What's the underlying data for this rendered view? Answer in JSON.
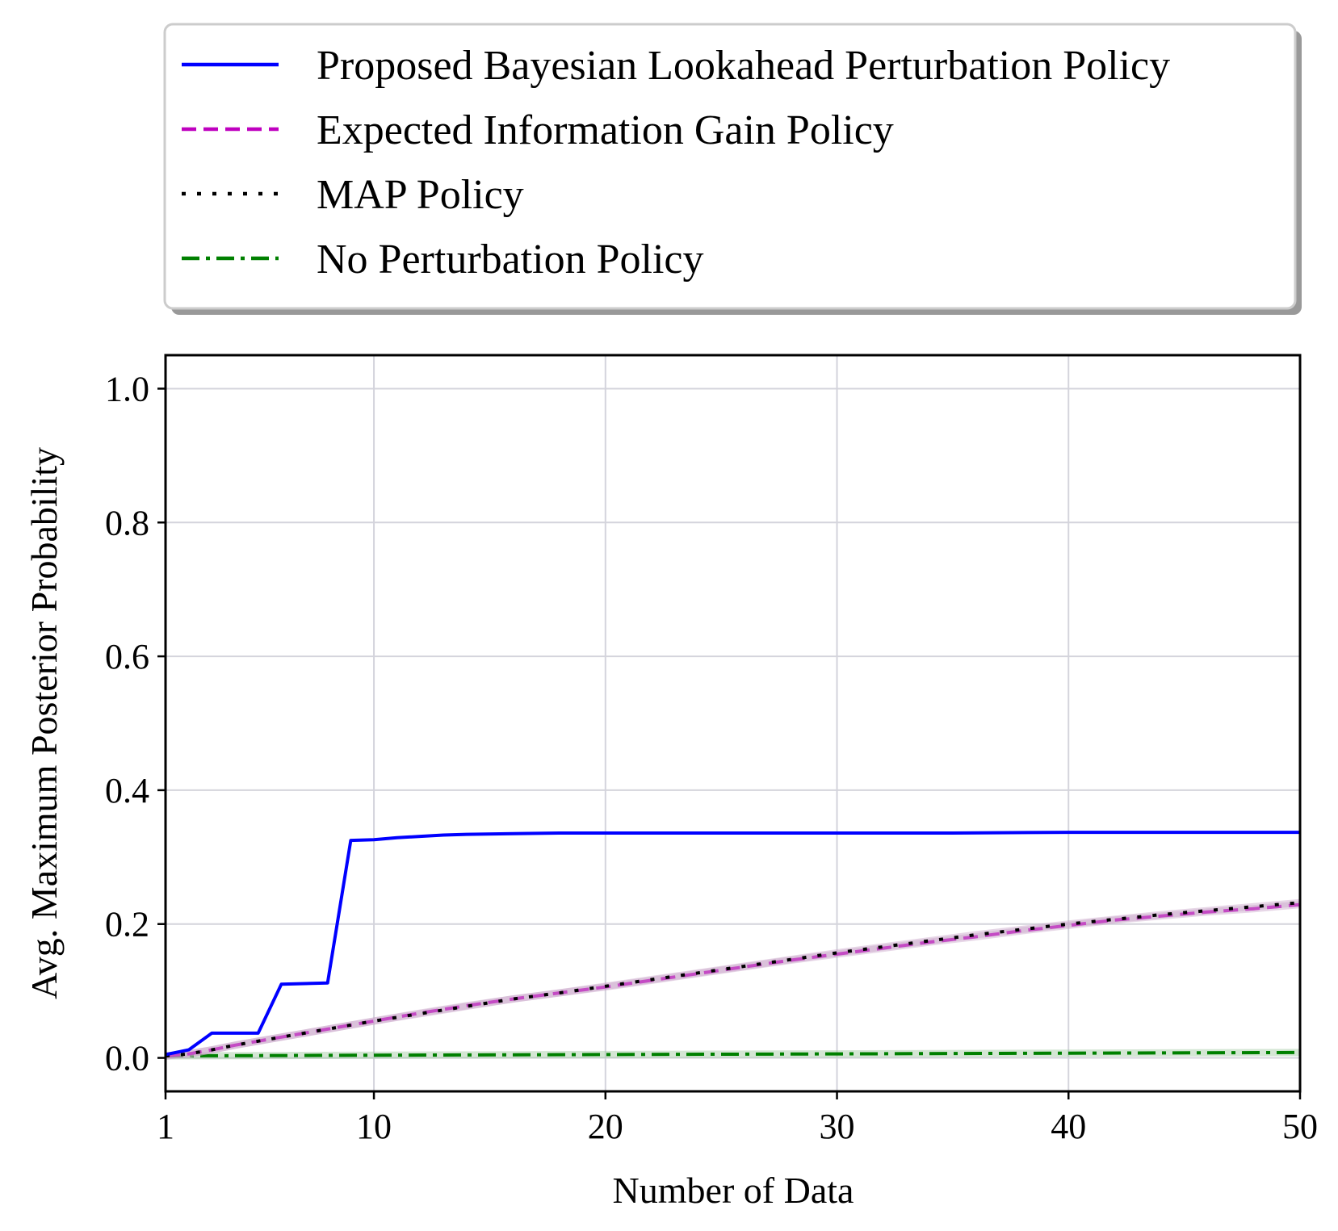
{
  "chart_data": {
    "type": "line",
    "xlabel": "Number of Data",
    "ylabel": "Avg. Maximum Posterior Probability",
    "xlim": [
      1,
      50
    ],
    "ylim": [
      -0.05,
      1.05
    ],
    "xticks": [
      1,
      10,
      20,
      30,
      40,
      50
    ],
    "yticks": [
      0.0,
      0.2,
      0.4,
      0.6,
      0.8,
      1.0
    ],
    "xtick_labels": [
      "1",
      "10",
      "20",
      "30",
      "40",
      "50"
    ],
    "ytick_labels": [
      "0.0",
      "0.2",
      "0.4",
      "0.6",
      "0.8",
      "1.0"
    ],
    "grid": true,
    "legend_position": "above plot",
    "series": [
      {
        "name": "Proposed Bayesian Lookahead Perturbation Policy",
        "color": "#0000ff",
        "dash": "solid",
        "x": [
          1,
          2,
          3,
          4,
          5,
          6,
          7,
          8,
          9,
          10,
          11,
          12,
          13,
          14,
          16,
          18,
          20,
          25,
          30,
          35,
          40,
          45,
          50
        ],
        "y": [
          0.005,
          0.012,
          0.037,
          0.037,
          0.037,
          0.11,
          0.111,
          0.112,
          0.325,
          0.326,
          0.329,
          0.331,
          0.333,
          0.334,
          0.335,
          0.336,
          0.336,
          0.336,
          0.336,
          0.336,
          0.337,
          0.337,
          0.337
        ]
      },
      {
        "name": "Expected Information Gain Policy",
        "color": "#bf00bf",
        "dash": "dashed",
        "x": [
          1,
          2,
          3,
          4,
          5,
          6,
          7,
          8,
          9,
          10,
          12,
          14,
          16,
          18,
          20,
          22,
          24,
          26,
          28,
          30,
          32,
          34,
          36,
          38,
          40,
          42,
          44,
          46,
          48,
          50
        ],
        "y": [
          0.003,
          0.006,
          0.012,
          0.019,
          0.025,
          0.031,
          0.037,
          0.043,
          0.049,
          0.055,
          0.067,
          0.078,
          0.088,
          0.097,
          0.106,
          0.116,
          0.126,
          0.136,
          0.146,
          0.155,
          0.164,
          0.173,
          0.181,
          0.19,
          0.198,
          0.206,
          0.212,
          0.218,
          0.223,
          0.229
        ]
      },
      {
        "name": "MAP Policy",
        "color": "#000000",
        "dash": "dotted",
        "x": [
          1,
          2,
          3,
          4,
          5,
          6,
          7,
          8,
          9,
          10,
          12,
          14,
          16,
          18,
          20,
          22,
          24,
          26,
          28,
          30,
          32,
          34,
          36,
          38,
          40,
          42,
          44,
          46,
          48,
          50
        ],
        "y": [
          0.003,
          0.006,
          0.012,
          0.019,
          0.025,
          0.031,
          0.037,
          0.043,
          0.049,
          0.055,
          0.066,
          0.077,
          0.088,
          0.097,
          0.107,
          0.117,
          0.127,
          0.137,
          0.147,
          0.157,
          0.166,
          0.175,
          0.184,
          0.192,
          0.2,
          0.207,
          0.214,
          0.22,
          0.226,
          0.232
        ]
      },
      {
        "name": "No Perturbation Policy",
        "color": "#008000",
        "dash": "dashdot",
        "x": [
          1,
          10,
          20,
          30,
          40,
          50
        ],
        "y": [
          0.003,
          0.004,
          0.005,
          0.006,
          0.007,
          0.008
        ]
      }
    ]
  }
}
